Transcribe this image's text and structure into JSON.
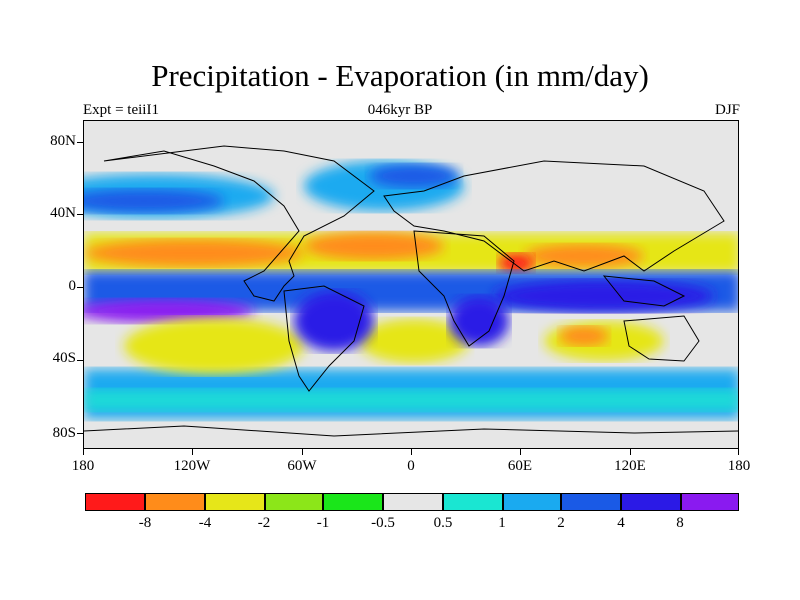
{
  "title": "Precipitation - Evaporation (in mm/day)",
  "subtitle": "046kyr BP",
  "experiment": "Expt = teiiI1",
  "season": "DJF",
  "y_ticks": [
    "80N",
    "40N",
    "0",
    "40S",
    "80S"
  ],
  "x_ticks": [
    "180",
    "120W",
    "60W",
    "0",
    "60E",
    "120E",
    "180"
  ],
  "colorbar": {
    "labels": [
      "-8",
      "-4",
      "-2",
      "-1",
      "-0.5",
      "0.5",
      "1",
      "2",
      "4",
      "8"
    ],
    "colors": [
      "#ff1a1a",
      "#ff8c1a",
      "#e6e619",
      "#8ce619",
      "#1ae61a",
      "#e6e6e6",
      "#1ae6d2",
      "#1aaaf0",
      "#1a5ae6",
      "#2b1ae6",
      "#8a1af0"
    ]
  }
}
